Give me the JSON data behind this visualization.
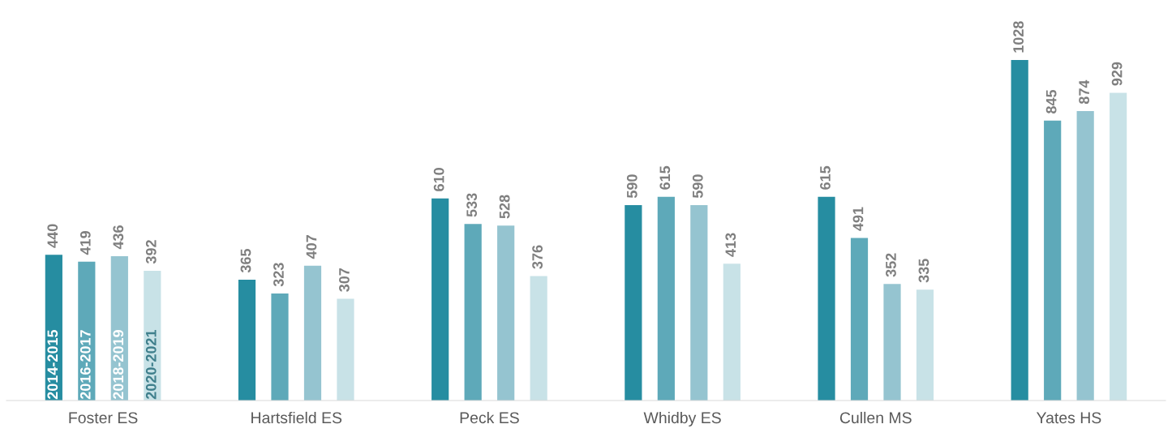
{
  "chart_data": {
    "type": "bar",
    "categories": [
      "Foster ES",
      "Hartsfield ES",
      "Peck ES",
      "Whidby ES",
      "Cullen MS",
      "Yates HS"
    ],
    "series": [
      {
        "name": "2014-2015",
        "color": "#268da1",
        "values": [
          440,
          365,
          610,
          590,
          615,
          1028
        ]
      },
      {
        "name": "2016-2017",
        "color": "#5ea9b9",
        "values": [
          419,
          323,
          533,
          615,
          491,
          845
        ]
      },
      {
        "name": "2018-2019",
        "color": "#95c4d0",
        "values": [
          436,
          407,
          528,
          590,
          352,
          874
        ]
      },
      {
        "name": "2020-2021",
        "color": "#c8e2e7",
        "values": [
          392,
          307,
          376,
          413,
          335,
          929
        ]
      }
    ],
    "tick_labels": "x",
    "data_labels": true,
    "grid": false,
    "legend": false
  }
}
